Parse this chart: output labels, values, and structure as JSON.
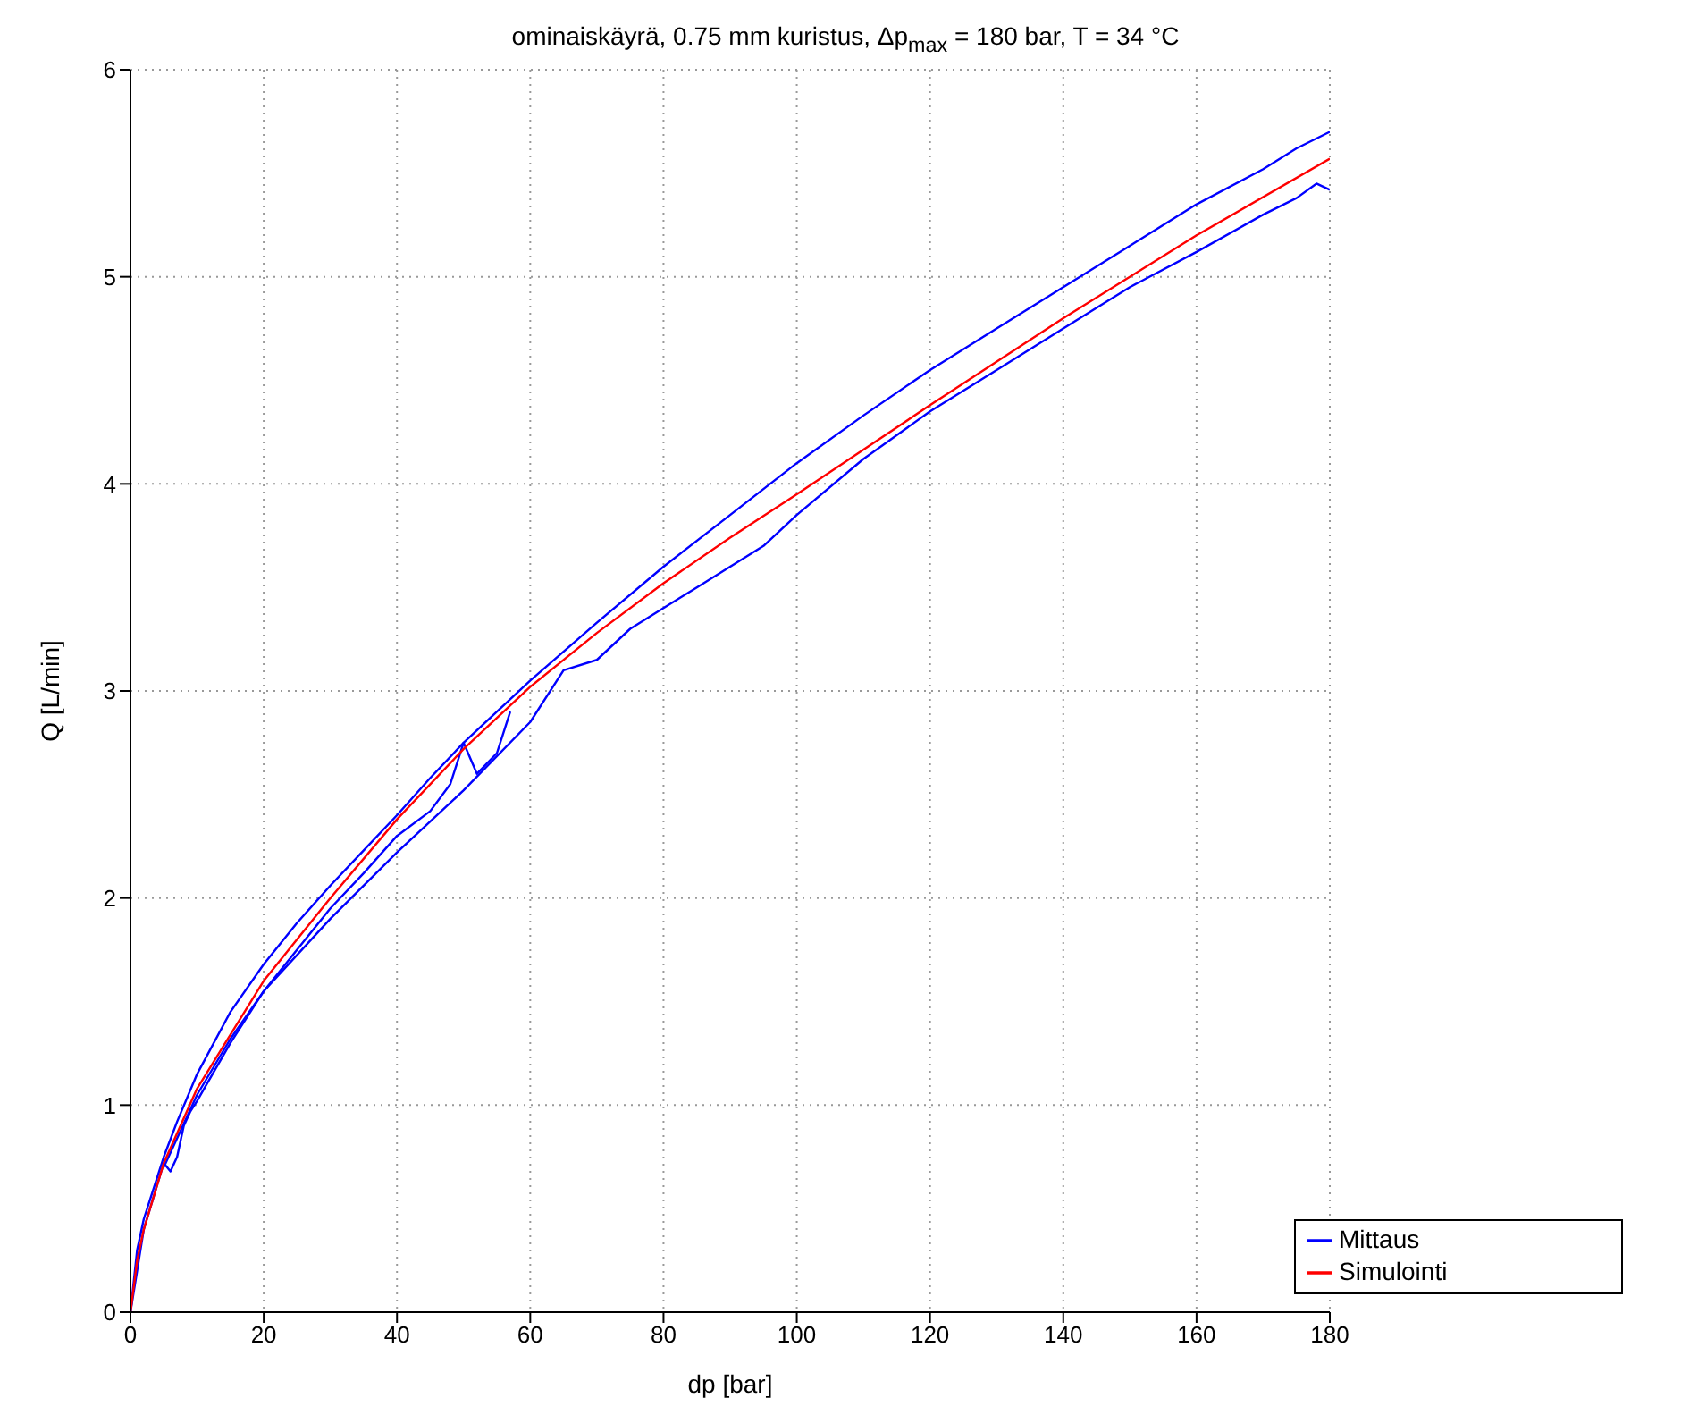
{
  "chart_data": {
    "type": "line",
    "title": "ominaiskäyrä, 0.75 mm kuristus, Δp$_{max}$ = 180 bar, T = 34 °C",
    "xlabel": "dp [bar]",
    "ylabel": "Q [L/min]",
    "xlim": [
      0,
      180
    ],
    "xticks": [
      0,
      20,
      40,
      60,
      80,
      100,
      120,
      140,
      160,
      180
    ],
    "ylim": [
      0,
      6
    ],
    "yticks": [
      0,
      1,
      2,
      3,
      4,
      5,
      6
    ],
    "grid": true,
    "legend": "bottom right",
    "line_style": "solid",
    "marker": "none",
    "series": [
      {
        "name": "Mittaus",
        "color": "#0000ff",
        "x": [
          0,
          1,
          2,
          3,
          5,
          7,
          10,
          15,
          20,
          25,
          30,
          35,
          40,
          45,
          50,
          55,
          60,
          70,
          80,
          90,
          100,
          110,
          120,
          130,
          140,
          150,
          160,
          170,
          175,
          180
        ],
        "values": [
          0,
          0.3,
          0.45,
          0.55,
          0.75,
          0.92,
          1.15,
          1.45,
          1.68,
          1.88,
          2.06,
          2.23,
          2.4,
          2.58,
          2.75,
          2.9,
          3.05,
          3.33,
          3.6,
          3.85,
          4.1,
          4.33,
          4.55,
          4.75,
          4.95,
          5.15,
          5.35,
          5.52,
          5.62,
          5.7
        ]
      },
      {
        "color": "#0000ff",
        "x": [
          0,
          2,
          5,
          6,
          7,
          8,
          9,
          10,
          15,
          20,
          25,
          30,
          35,
          40,
          45,
          48,
          50,
          52,
          55,
          57
        ],
        "values": [
          0,
          0.4,
          0.72,
          0.68,
          0.75,
          0.9,
          0.97,
          1.02,
          1.3,
          1.55,
          1.75,
          1.95,
          2.12,
          2.3,
          2.42,
          2.55,
          2.75,
          2.6,
          2.7,
          2.9
        ]
      },
      {
        "color": "#0000ff",
        "x": [
          5,
          10,
          15,
          20,
          30,
          40,
          50,
          60,
          65,
          70,
          75,
          80,
          85,
          90,
          95,
          100,
          110,
          120,
          130,
          140,
          150,
          160,
          170,
          175,
          178,
          180
        ],
        "values": [
          0.7,
          1.05,
          1.32,
          1.55,
          1.9,
          2.22,
          2.52,
          2.85,
          3.1,
          3.15,
          3.3,
          3.4,
          3.5,
          3.6,
          3.7,
          3.85,
          4.12,
          4.35,
          4.55,
          4.75,
          4.95,
          5.12,
          5.3,
          5.38,
          5.45,
          5.42
        ]
      },
      {
        "name": "Simulointi",
        "color": "#ff0000",
        "x": [
          0,
          1,
          2,
          5,
          10,
          20,
          30,
          40,
          50,
          60,
          70,
          80,
          90,
          100,
          120,
          140,
          160,
          180
        ],
        "values": [
          0,
          0.25,
          0.4,
          0.72,
          1.08,
          1.6,
          2.0,
          2.38,
          2.72,
          3.02,
          3.28,
          3.52,
          3.74,
          3.95,
          4.38,
          4.8,
          5.2,
          5.57
        ]
      }
    ]
  }
}
